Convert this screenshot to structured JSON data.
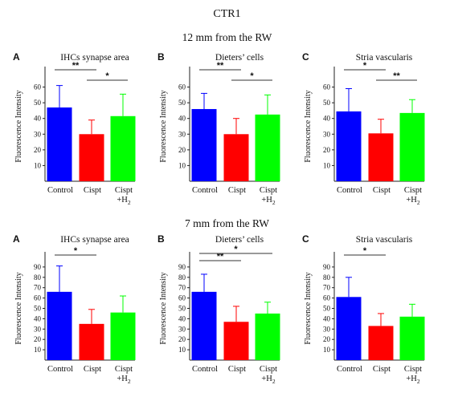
{
  "figure": {
    "title": "CTR1",
    "row_titles": [
      "12 mm from the RW",
      "7 mm from the RW"
    ]
  },
  "colors": {
    "control": "#0000ff",
    "cispt": "#ff0000",
    "cispt_h2": "#00ff00"
  },
  "chart_data": [
    {
      "type": "bar",
      "row": 0,
      "panel": "A",
      "title": "IHCs synapse area",
      "ylabel": "Fluorescence Intensity",
      "categories": [
        "Control",
        "Cispt",
        "Cispt\n+H2"
      ],
      "values": [
        47,
        30,
        41.5
      ],
      "errors": [
        14,
        9,
        14
      ],
      "ylim": [
        0,
        70
      ],
      "yticks": [
        10,
        20,
        30,
        40,
        50,
        60
      ],
      "significance": [
        {
          "from": 0,
          "to": 1,
          "label": "**"
        },
        {
          "from": 1,
          "to": 2,
          "label": "*"
        }
      ]
    },
    {
      "type": "bar",
      "row": 0,
      "panel": "B",
      "title": "Dieters’ cells",
      "ylabel": "Fluorescence Intensity",
      "categories": [
        "Control",
        "Cispt",
        "Cispt\n+H2"
      ],
      "values": [
        46,
        30,
        42.5
      ],
      "errors": [
        10,
        10,
        12.5
      ],
      "ylim": [
        0,
        70
      ],
      "yticks": [
        10,
        20,
        30,
        40,
        50,
        60
      ],
      "significance": [
        {
          "from": 0,
          "to": 1,
          "label": "**"
        },
        {
          "from": 1,
          "to": 2,
          "label": "*"
        }
      ]
    },
    {
      "type": "bar",
      "row": 0,
      "panel": "C",
      "title": "Stria vascularis",
      "ylabel": "Fluorescence Intensity",
      "categories": [
        "Control",
        "Cispt",
        "Cispt\n+H2"
      ],
      "values": [
        44.5,
        30.5,
        43.5
      ],
      "errors": [
        14.5,
        9,
        8.5
      ],
      "ylim": [
        0,
        70
      ],
      "yticks": [
        10,
        20,
        30,
        40,
        50,
        60
      ],
      "significance": [
        {
          "from": 0,
          "to": 1,
          "label": "*"
        },
        {
          "from": 1,
          "to": 2,
          "label": "**"
        }
      ]
    },
    {
      "type": "bar",
      "row": 1,
      "panel": "A",
      "title": "IHCs synapse area",
      "ylabel": "Fluorescence Intensity",
      "categories": [
        "Control",
        "Cispt",
        "Cispt\n+H2"
      ],
      "values": [
        66,
        35,
        46
      ],
      "errors": [
        25,
        14,
        16
      ],
      "ylim": [
        0,
        100
      ],
      "yticks": [
        10,
        20,
        30,
        40,
        50,
        60,
        70,
        80,
        90
      ],
      "significance": [
        {
          "from": 0,
          "to": 1,
          "label": "*"
        }
      ]
    },
    {
      "type": "bar",
      "row": 1,
      "panel": "B",
      "title": "Dieters’ cells",
      "ylabel": "Fluorescence Intensity",
      "categories": [
        "Control",
        "Cispt",
        "Cispt\n+H2"
      ],
      "values": [
        66,
        37,
        45
      ],
      "errors": [
        17,
        15,
        11
      ],
      "ylim": [
        0,
        100
      ],
      "yticks": [
        10,
        20,
        30,
        40,
        50,
        60,
        70,
        80,
        90
      ],
      "significance": [
        {
          "from": 0,
          "to": 1,
          "label": "**"
        },
        {
          "from": 0,
          "to": 2,
          "label": "*"
        }
      ]
    },
    {
      "type": "bar",
      "row": 1,
      "panel": "C",
      "title": "Stria vascularis",
      "ylabel": "Fluorescence Intensity",
      "categories": [
        "Control",
        "Cispt",
        "Cispt\n+H2"
      ],
      "values": [
        61,
        33,
        42
      ],
      "errors": [
        19,
        12,
        12
      ],
      "ylim": [
        0,
        100
      ],
      "yticks": [
        10,
        20,
        30,
        40,
        50,
        60,
        70,
        80,
        90
      ],
      "significance": [
        {
          "from": 0,
          "to": 1,
          "label": "*"
        }
      ]
    }
  ]
}
